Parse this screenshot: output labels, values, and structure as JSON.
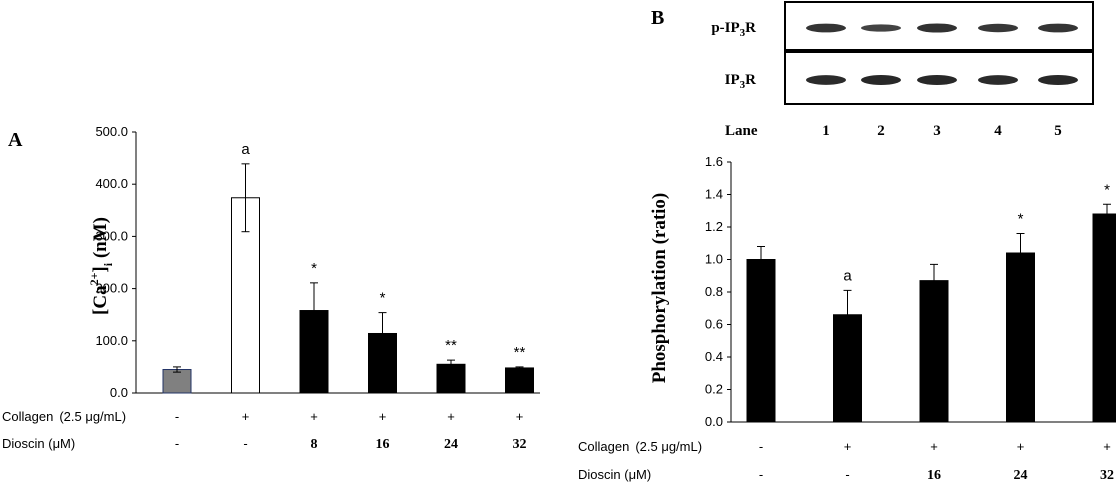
{
  "chart_data": [
    {
      "panel": "A",
      "type": "bar",
      "ylabel_main": "[Ca",
      "ylabel_sup": "2+",
      "ylabel_close": "]",
      "ylabel_sub": "i",
      "ylabel_unit": " (nM)",
      "ylim": [
        0,
        500
      ],
      "yticks": [
        "0.0",
        "100.0",
        "200.0",
        "300.0",
        "400.0",
        "500.0"
      ],
      "ytick_values": [
        0,
        100,
        200,
        300,
        400,
        500
      ],
      "values": [
        45,
        374,
        158,
        114,
        55,
        48
      ],
      "errors": [
        5,
        65,
        53,
        40,
        8,
        2
      ],
      "bar_colors": [
        "#808080",
        "#ffffff",
        "#000000",
        "#000000",
        "#000000",
        "#000000"
      ],
      "annotations": [
        "",
        "a",
        "*",
        "*",
        "**",
        "**"
      ],
      "conditions": [
        {
          "label": "Collagen",
          "unit": "(2.5 μg/mL)",
          "values": [
            "-",
            "+",
            "+",
            "+",
            "+",
            "+"
          ]
        },
        {
          "label": "Dioscin (μM)",
          "unit": "",
          "values": [
            "-",
            "-",
            "8",
            "16",
            "24",
            "32"
          ]
        }
      ]
    },
    {
      "panel": "B",
      "type": "bar",
      "ylabel": "Phosphorylation (ratio)",
      "ylim": [
        0,
        1.6
      ],
      "yticks": [
        "0.0",
        "0.2",
        "0.4",
        "0.6",
        "0.8",
        "1.0",
        "1.2",
        "1.4",
        "1.6"
      ],
      "ytick_values": [
        0,
        0.2,
        0.4,
        0.6,
        0.8,
        1.0,
        1.2,
        1.4,
        1.6
      ],
      "values": [
        1.0,
        0.66,
        0.87,
        1.04,
        1.28
      ],
      "errors": [
        0.08,
        0.15,
        0.1,
        0.12,
        0.06
      ],
      "bar_colors": [
        "#000000",
        "#000000",
        "#000000",
        "#000000",
        "#000000"
      ],
      "annotations": [
        "",
        "a",
        "",
        "*",
        "*"
      ],
      "conditions": [
        {
          "label": "Collagen",
          "unit": "(2.5 μg/mL)",
          "values": [
            "-",
            "+",
            "+",
            "+",
            "+"
          ]
        },
        {
          "label": "Dioscin (μM)",
          "unit": "",
          "values": [
            "-",
            "-",
            "16",
            "24",
            "32"
          ]
        }
      ],
      "blot": {
        "rows": [
          {
            "label_main": "p-IP",
            "label_sub": "3",
            "label_end": "R",
            "intensity": [
              0.8,
              0.55,
              0.85,
              0.75,
              0.8
            ]
          },
          {
            "label_main": "IP",
            "label_sub": "3",
            "label_end": "R",
            "intensity": [
              0.95,
              1.0,
              1.0,
              0.95,
              1.0
            ]
          }
        ],
        "lane_title": "Lane",
        "lanes": [
          "1",
          "2",
          "3",
          "4",
          "5"
        ]
      }
    }
  ]
}
